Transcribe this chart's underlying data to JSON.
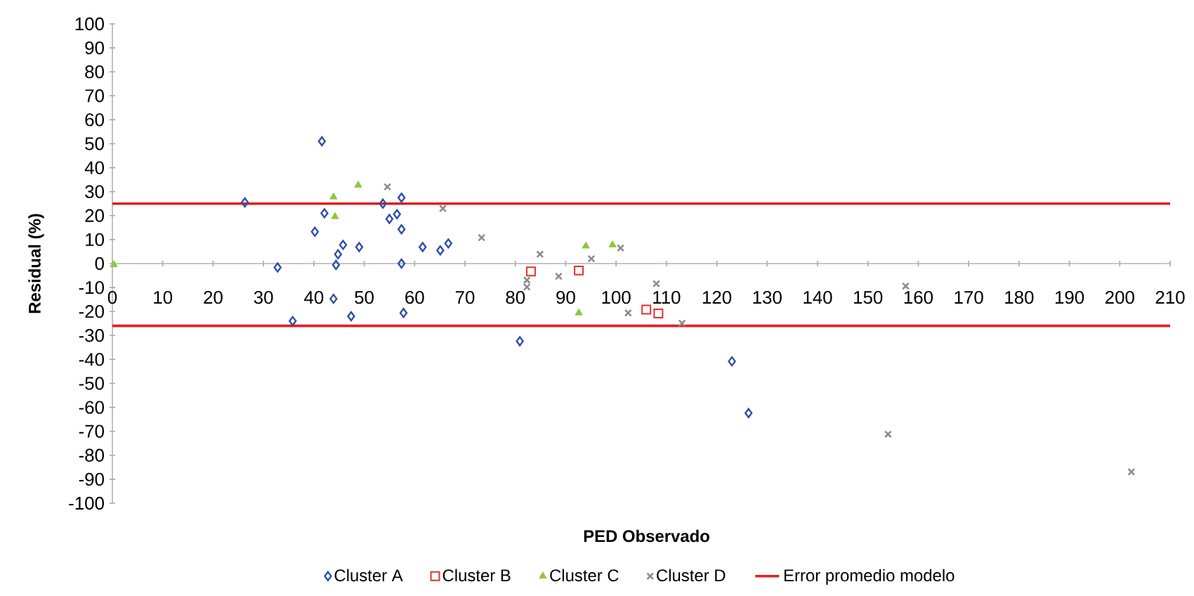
{
  "chart_data": {
    "type": "scatter",
    "xlabel": "PED Observado",
    "ylabel": "Residual (%)",
    "xlim": [
      0,
      210
    ],
    "ylim": [
      -100,
      100
    ],
    "xticks": [
      0,
      10,
      20,
      30,
      40,
      50,
      60,
      70,
      80,
      90,
      100,
      110,
      120,
      130,
      140,
      150,
      160,
      170,
      180,
      190,
      200,
      210
    ],
    "yticks": [
      -100,
      -90,
      -80,
      -70,
      -60,
      -50,
      -40,
      -30,
      -20,
      -10,
      0,
      10,
      20,
      30,
      40,
      50,
      60,
      70,
      80,
      90,
      100
    ],
    "legend": "bottom",
    "grid": false,
    "series": [
      {
        "name": "Cluster A",
        "color": "#2e4fa8",
        "marker": "diamond",
        "x": [
          26.3,
          41.6,
          42.1,
          40.2,
          32.8,
          45.8,
          44.8,
          44.4,
          49,
          43.9,
          35.8,
          47.4,
          53.7,
          55,
          57.4,
          56.5,
          57.4,
          57.4,
          57.8,
          61.6,
          65.1,
          66.7,
          80.9,
          123,
          126.3
        ],
        "values": [
          25.5,
          51,
          21,
          13.3,
          -1.6,
          7.8,
          3.9,
          -0.6,
          6.9,
          -14.7,
          -24,
          -22,
          25,
          18.6,
          27.5,
          20.6,
          14.3,
          0,
          -20.6,
          6.9,
          5.5,
          8.4,
          -32.4,
          -40.8,
          -62.4
        ]
      },
      {
        "name": "Cluster B",
        "color": "#e8312a",
        "marker": "square",
        "x": [
          83.1,
          92.6,
          106,
          108.4
        ],
        "values": [
          -3.3,
          -2.9,
          -19.2,
          -20.8
        ]
      },
      {
        "name": "Cluster C",
        "color": "#8dc63f",
        "marker": "triangle",
        "x": [
          0.3,
          43.9,
          44.2,
          48.8,
          94,
          99.3,
          92.6
        ],
        "values": [
          -0.5,
          27.8,
          19.6,
          32.7,
          7.3,
          7.8,
          -20.6
        ]
      },
      {
        "name": "Cluster D",
        "color": "#8c8c8c",
        "marker": "cross",
        "x": [
          54.6,
          65.6,
          73.3,
          82.3,
          82.3,
          84.9,
          88.6,
          95.1,
          100.9,
          102.4,
          108,
          113.1,
          157.5,
          154,
          202.3
        ],
        "values": [
          32,
          23,
          10.8,
          -6.9,
          -9.8,
          3.9,
          -5.3,
          2,
          6.5,
          -20.6,
          -8.4,
          -24.9,
          -9.4,
          -71.2,
          -86.9
        ]
      },
      {
        "name": "Error promedio modelo",
        "type": "line",
        "line_style": "solid",
        "color": "#e02020",
        "marker": "none",
        "x": [
          0,
          210
        ],
        "values": [
          25,
          25
        ]
      },
      {
        "type": "line",
        "color": "#e02020",
        "marker": "none",
        "x": [
          0,
          210
        ],
        "values": [
          -26,
          -26
        ]
      }
    ]
  }
}
